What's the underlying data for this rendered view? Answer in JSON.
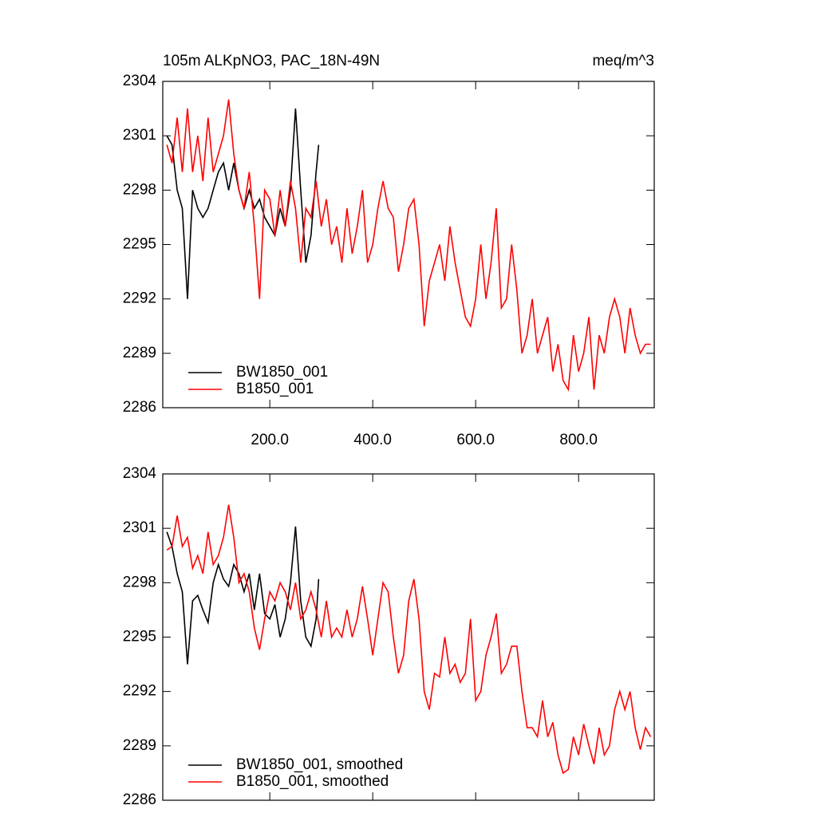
{
  "chart_data": [
    {
      "type": "line",
      "title": "105m ALKpNO3, PAC_18N-49N",
      "units": "meq/m^3",
      "xlim": [
        -8,
        947
      ],
      "ylim": [
        2286,
        2304
      ],
      "xticks": [
        {
          "value": 200,
          "label": "200.0"
        },
        {
          "value": 400,
          "label": "400.0"
        },
        {
          "value": 600,
          "label": "600.0"
        },
        {
          "value": 800,
          "label": "800.0"
        }
      ],
      "yticks": [
        2286,
        2289,
        2292,
        2295,
        2298,
        2301,
        2304
      ],
      "series": [
        {
          "name": "BW1850_001",
          "color": "#000000",
          "x": [
            0,
            10,
            20,
            30,
            40,
            50,
            60,
            70,
            80,
            90,
            100,
            110,
            120,
            130,
            140,
            150,
            160,
            170,
            180,
            190,
            200,
            210,
            220,
            230,
            240,
            250,
            260,
            270,
            280,
            290,
            295
          ],
          "values": [
            2301,
            2300.5,
            2298,
            2297,
            2292,
            2298,
            2297,
            2296.5,
            2297,
            2298,
            2299,
            2299.5,
            2298,
            2299.5,
            2298,
            2297,
            2298,
            2297,
            2297.5,
            2296.5,
            2296,
            2295.5,
            2297,
            2296,
            2298,
            2302.5,
            2298,
            2294,
            2295.5,
            2299,
            2300.5
          ]
        },
        {
          "name": "B1850_001",
          "color": "#ff0000",
          "x": [
            0,
            10,
            20,
            30,
            40,
            50,
            60,
            70,
            80,
            90,
            100,
            110,
            120,
            130,
            140,
            150,
            160,
            170,
            180,
            190,
            200,
            210,
            220,
            230,
            240,
            250,
            260,
            270,
            280,
            290,
            300,
            310,
            320,
            330,
            340,
            350,
            360,
            370,
            380,
            390,
            400,
            410,
            420,
            430,
            440,
            450,
            460,
            470,
            480,
            490,
            500,
            510,
            520,
            530,
            540,
            550,
            560,
            570,
            580,
            590,
            600,
            610,
            620,
            630,
            640,
            650,
            660,
            670,
            680,
            690,
            700,
            710,
            720,
            730,
            740,
            750,
            760,
            770,
            780,
            790,
            800,
            810,
            820,
            830,
            840,
            850,
            860,
            870,
            880,
            890,
            900,
            910,
            920,
            930,
            940
          ],
          "values": [
            2300.5,
            2299.5,
            2302,
            2299,
            2302.5,
            2299,
            2301,
            2298.5,
            2302,
            2299,
            2300,
            2301,
            2303,
            2300,
            2298,
            2297,
            2299,
            2296,
            2292,
            2298,
            2297.5,
            2295.5,
            2298,
            2296,
            2298.5,
            2297,
            2294,
            2297,
            2296.5,
            2298.5,
            2296,
            2297.5,
            2295,
            2296,
            2294,
            2297,
            2294.5,
            2296,
            2298,
            2294,
            2295,
            2297,
            2298.5,
            2297,
            2296.5,
            2293.5,
            2295,
            2297,
            2297.5,
            2295,
            2290.5,
            2293,
            2294,
            2295,
            2293,
            2296,
            2294,
            2292.5,
            2291,
            2290.5,
            2292,
            2295,
            2292,
            2294,
            2297,
            2291.5,
            2292,
            2295,
            2292.5,
            2289,
            2290,
            2292,
            2289,
            2290,
            2291,
            2288,
            2289.5,
            2287.5,
            2287,
            2290,
            2288,
            2289,
            2291,
            2287,
            2290,
            2289,
            2291,
            2292,
            2291,
            2289,
            2291.5,
            2290,
            2289,
            2289.5,
            2289.5
          ]
        }
      ]
    },
    {
      "type": "line",
      "xlim": [
        -8,
        947
      ],
      "ylim": [
        2286,
        2304
      ],
      "yticks": [
        2286,
        2289,
        2292,
        2295,
        2298,
        2301,
        2304
      ],
      "series": [
        {
          "name": "BW1850_001, smoothed",
          "color": "#000000",
          "x": [
            0,
            10,
            20,
            30,
            40,
            50,
            60,
            70,
            80,
            90,
            100,
            110,
            120,
            130,
            140,
            150,
            160,
            170,
            180,
            190,
            200,
            210,
            220,
            230,
            240,
            250,
            260,
            270,
            280,
            290,
            295
          ],
          "values": [
            2300.8,
            2300,
            2298.5,
            2297.5,
            2293.5,
            2297,
            2297.3,
            2296.5,
            2295.8,
            2298,
            2299,
            2298.2,
            2297.8,
            2299,
            2298.5,
            2297.5,
            2298.5,
            2296.5,
            2298.5,
            2296.3,
            2296,
            2296.8,
            2295,
            2296,
            2298,
            2301.1,
            2297,
            2295,
            2294.5,
            2296,
            2298.2
          ]
        },
        {
          "name": "B1850_001, smoothed",
          "color": "#ff0000",
          "x": [
            0,
            10,
            20,
            30,
            40,
            50,
            60,
            70,
            80,
            90,
            100,
            110,
            120,
            130,
            140,
            150,
            160,
            170,
            180,
            190,
            200,
            210,
            220,
            230,
            240,
            250,
            260,
            270,
            280,
            290,
            300,
            310,
            320,
            330,
            340,
            350,
            360,
            370,
            380,
            390,
            400,
            410,
            420,
            430,
            440,
            450,
            460,
            470,
            480,
            490,
            500,
            510,
            520,
            530,
            540,
            550,
            560,
            570,
            580,
            590,
            600,
            610,
            620,
            630,
            640,
            650,
            660,
            670,
            680,
            690,
            700,
            710,
            720,
            730,
            740,
            750,
            760,
            770,
            780,
            790,
            800,
            810,
            820,
            830,
            840,
            850,
            860,
            870,
            880,
            890,
            900,
            910,
            920,
            930,
            940
          ],
          "values": [
            2299.8,
            2300,
            2301.7,
            2300,
            2300.5,
            2298.8,
            2299.5,
            2298.5,
            2300.8,
            2299,
            2299.5,
            2300.5,
            2302.3,
            2300.5,
            2298,
            2298.5,
            2297.5,
            2295.5,
            2294.3,
            2296,
            2297.5,
            2297,
            2298,
            2297.5,
            2296.5,
            2298,
            2296,
            2296.5,
            2297.5,
            2296.5,
            2295,
            2297,
            2295,
            2295.5,
            2295,
            2296.5,
            2295,
            2296,
            2297.8,
            2296,
            2294,
            2296,
            2298,
            2297.5,
            2295,
            2293,
            2294,
            2297,
            2298.2,
            2296,
            2292,
            2291,
            2293,
            2292.8,
            2295,
            2293,
            2293.5,
            2292.5,
            2293,
            2296,
            2291.5,
            2292,
            2294,
            2295,
            2296.3,
            2293,
            2293.5,
            2294.5,
            2294.5,
            2292,
            2290,
            2290,
            2289.5,
            2291.5,
            2289.5,
            2290.3,
            2288.5,
            2287.5,
            2287.7,
            2289.5,
            2288.5,
            2290.2,
            2289,
            2288,
            2290,
            2288.5,
            2289,
            2291,
            2292,
            2291,
            2292,
            2290,
            2288.8,
            2290,
            2289.5
          ]
        }
      ]
    }
  ]
}
